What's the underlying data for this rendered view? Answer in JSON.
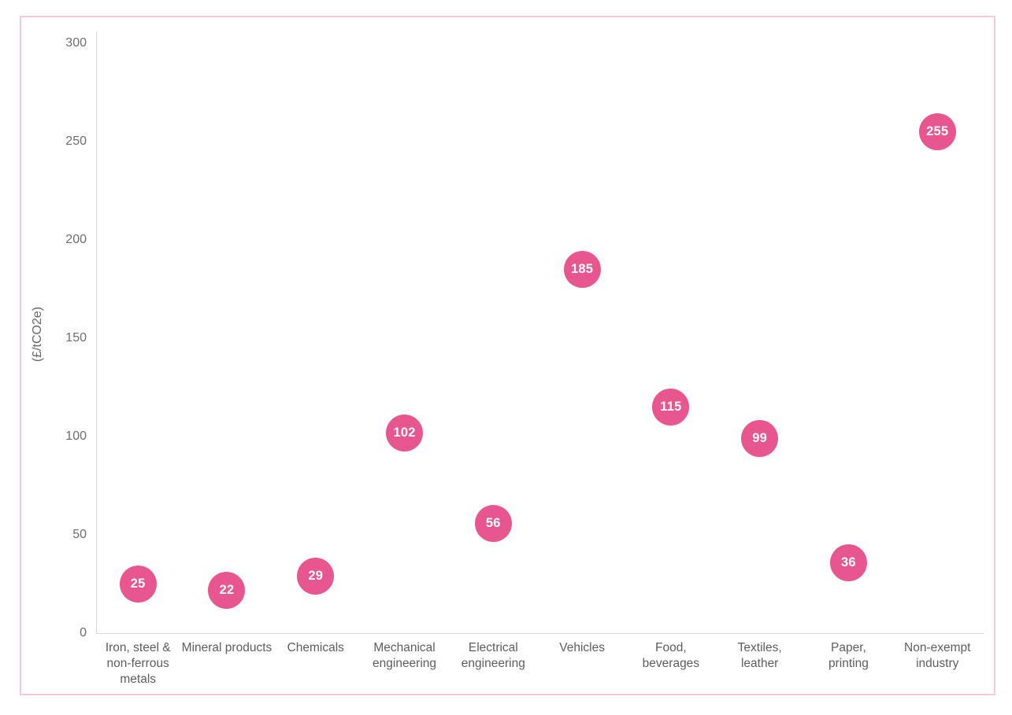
{
  "chart_data": {
    "type": "scatter",
    "title": "",
    "xlabel": "",
    "ylabel": "(£/tCO2e)",
    "ylim": [
      0,
      300
    ],
    "yticks": [
      0,
      50,
      100,
      150,
      200,
      250,
      300
    ],
    "grid": false,
    "legend": false,
    "categories": [
      "Iron, steel &\nnon-ferrous\nmetals",
      "Mineral products",
      "Chemicals",
      "Mechanical\nengineering",
      "Electrical\nengineering",
      "Vehicles",
      "Food,\nbeverages",
      "Textiles,\nleather",
      "Paper,\nprinting",
      "Non-exempt\nindustry"
    ],
    "values": [
      25,
      22,
      29,
      102,
      56,
      185,
      115,
      99,
      36,
      255
    ],
    "points": [
      {
        "label": "Iron, steel & non-ferrous metals",
        "value": 25
      },
      {
        "label": "Mineral products",
        "value": 22
      },
      {
        "label": "Chemicals",
        "value": 29
      },
      {
        "label": "Mechanical engineering",
        "value": 102
      },
      {
        "label": "Electrical engineering",
        "value": 56
      },
      {
        "label": "Vehicles",
        "value": 185
      },
      {
        "label": "Food, beverages",
        "value": 115
      },
      {
        "label": "Textiles, leather",
        "value": 99
      },
      {
        "label": "Paper, printing",
        "value": 36
      },
      {
        "label": "Non-exempt industry",
        "value": 255
      }
    ],
    "colors": {
      "bubble": "#e8568f",
      "bubble_text": "#ffffff",
      "axis_line": "#d9d9d9",
      "tick_text": "#6d6d6d",
      "category_text": "#5d5d5d",
      "y_title_text": "#666666",
      "frame_border": "#f8c8d9",
      "background": "#ffffff"
    }
  }
}
